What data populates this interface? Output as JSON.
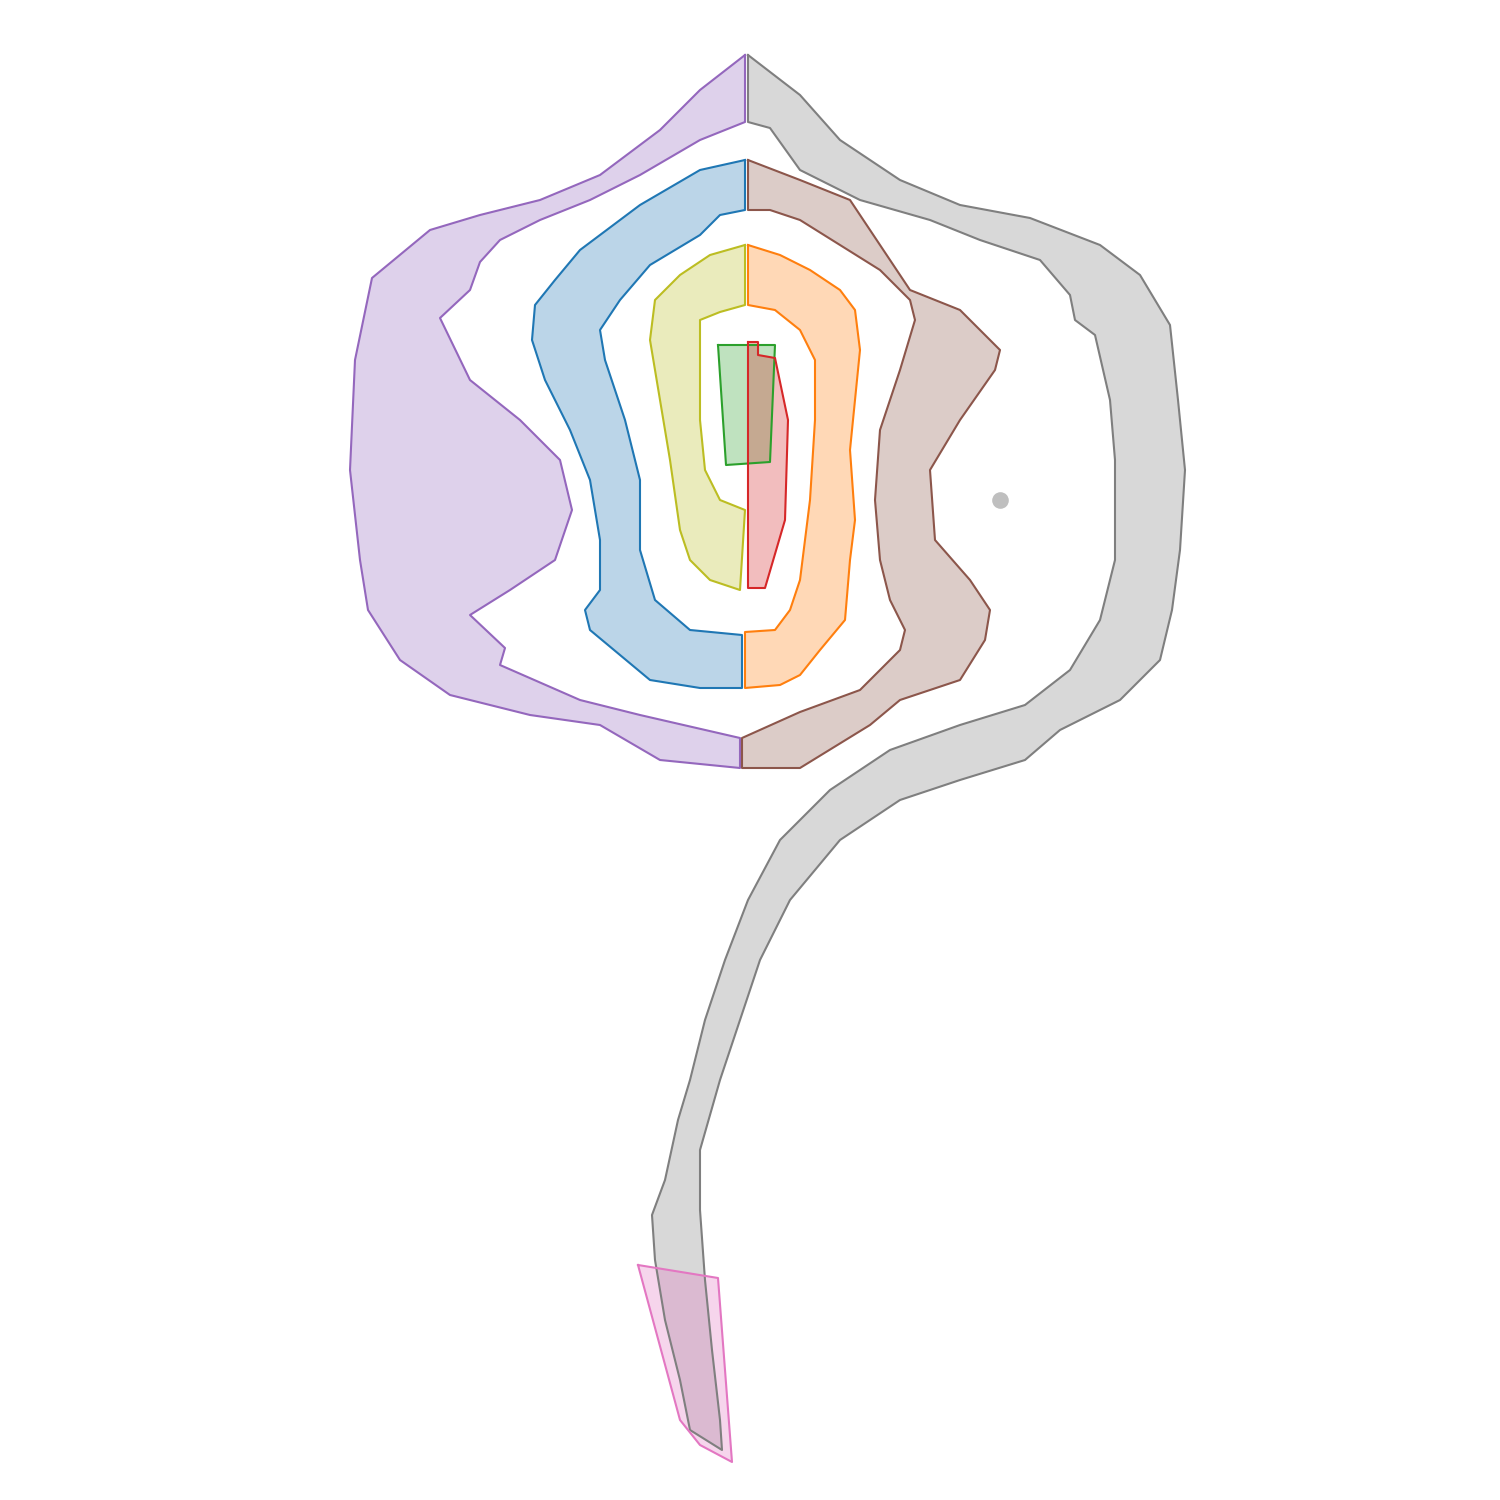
{
  "chart_data": {
    "type": "area",
    "tick_labels": false,
    "grid": false,
    "xlim": [
      0,
      1500
    ],
    "ylim": [
      1500,
      0
    ],
    "series": [
      {
        "color": "#9467bd",
        "type": "area",
        "x": [
          745,
          700,
          660,
          600,
          540,
          480,
          430,
          372,
          355,
          350,
          360,
          368,
          400,
          450,
          530,
          600,
          660,
          740,
          740,
          640,
          580,
          500,
          505,
          470,
          510,
          555,
          572,
          560,
          520,
          470,
          440,
          470,
          480,
          500,
          540,
          590,
          640,
          700,
          745
        ],
        "y": [
          55,
          90,
          130,
          175,
          200,
          215,
          230,
          278,
          360,
          470,
          560,
          610,
          660,
          695,
          715,
          725,
          760,
          768,
          738,
          715,
          700,
          665,
          648,
          615,
          590,
          560,
          510,
          460,
          420,
          380,
          318,
          290,
          262,
          240,
          220,
          200,
          175,
          140,
          122
        ]
      },
      {
        "color": "#7f7f7f",
        "type": "area",
        "x": [
          748,
          800,
          840,
          900,
          960,
          1030,
          1100,
          1140,
          1170,
          1178,
          1185,
          1180,
          1172,
          1160,
          1120,
          1060,
          1025,
          960,
          900,
          840,
          790,
          760,
          740,
          720,
          700,
          700,
          705,
          712,
          720,
          722,
          690,
          680,
          665,
          655,
          652,
          665,
          678,
          690,
          705,
          725,
          748,
          780,
          830,
          890,
          960,
          1025,
          1070,
          1100,
          1115,
          1115,
          1110,
          1095,
          1075,
          1070,
          1040,
          980,
          930,
          860,
          800,
          770,
          748
        ],
        "y": [
          55,
          95,
          140,
          180,
          205,
          218,
          245,
          275,
          325,
          400,
          470,
          550,
          610,
          660,
          700,
          730,
          760,
          780,
          800,
          840,
          900,
          960,
          1020,
          1080,
          1150,
          1210,
          1280,
          1350,
          1420,
          1450,
          1430,
          1380,
          1320,
          1260,
          1215,
          1180,
          1120,
          1080,
          1020,
          960,
          900,
          840,
          790,
          750,
          725,
          705,
          670,
          620,
          560,
          460,
          400,
          335,
          320,
          295,
          260,
          240,
          220,
          200,
          170,
          128,
          122
        ]
      },
      {
        "color": "#1f77b4",
        "type": "area",
        "x": [
          745,
          700,
          640,
          580,
          555,
          535,
          532,
          545,
          570,
          590,
          600,
          600,
          585,
          590,
          650,
          700,
          742,
          742,
          690,
          655,
          640,
          640,
          625,
          605,
          600,
          620,
          650,
          700,
          720,
          745
        ],
        "y": [
          160,
          170,
          205,
          250,
          280,
          305,
          340,
          380,
          430,
          480,
          540,
          590,
          610,
          630,
          680,
          688,
          688,
          635,
          630,
          600,
          550,
          480,
          420,
          360,
          330,
          300,
          265,
          235,
          215,
          210
        ]
      },
      {
        "color": "#8c564b",
        "type": "area",
        "x": [
          748,
          800,
          850,
          880,
          910,
          960,
          1000,
          995,
          960,
          930,
          935,
          970,
          990,
          985,
          960,
          900,
          870,
          800,
          742,
          742,
          800,
          860,
          900,
          905,
          890,
          880,
          875,
          880,
          900,
          915,
          910,
          880,
          840,
          800,
          770,
          748
        ],
        "y": [
          160,
          180,
          200,
          245,
          290,
          310,
          350,
          370,
          420,
          470,
          540,
          580,
          610,
          640,
          680,
          700,
          725,
          768,
          768,
          738,
          712,
          690,
          650,
          630,
          600,
          560,
          500,
          430,
          370,
          320,
          300,
          270,
          245,
          220,
          210,
          210
        ]
      },
      {
        "color": "#bcbd22",
        "type": "area",
        "x": [
          745,
          710,
          680,
          655,
          650,
          660,
          670,
          680,
          690,
          710,
          740,
          745,
          720,
          705,
          700,
          700,
          700,
          720,
          745
        ],
        "y": [
          245,
          255,
          275,
          300,
          340,
          400,
          460,
          530,
          560,
          580,
          590,
          510,
          500,
          470,
          420,
          360,
          320,
          312,
          305
        ]
      },
      {
        "color": "#ff7f0e",
        "type": "area",
        "x": [
          748,
          780,
          810,
          840,
          855,
          860,
          855,
          850,
          855,
          850,
          845,
          820,
          800,
          780,
          745,
          745,
          775,
          790,
          800,
          810,
          815,
          815,
          800,
          775,
          748
        ],
        "y": [
          245,
          255,
          270,
          290,
          310,
          350,
          400,
          450,
          520,
          560,
          620,
          650,
          675,
          685,
          688,
          632,
          630,
          610,
          580,
          500,
          420,
          360,
          330,
          310,
          305
        ]
      },
      {
        "color": "#2ca02c",
        "type": "area",
        "x": [
          718,
          775,
          770,
          726
        ],
        "y": [
          345,
          345,
          462,
          465
        ]
      },
      {
        "color": "#d62728",
        "type": "area",
        "x": [
          748,
          758,
          758,
          775,
          788,
          785,
          765,
          748
        ],
        "y": [
          342,
          342,
          355,
          358,
          420,
          520,
          588,
          588
        ]
      },
      {
        "color": "#e377c2",
        "type": "area",
        "x": [
          638,
          718,
          732,
          700,
          680
        ],
        "y": [
          1265,
          1278,
          1462,
          1445,
          1420
        ]
      },
      {
        "color": "#bfbfbf",
        "type": "scatter",
        "x": [
          1000
        ],
        "y": [
          500
        ]
      }
    ]
  }
}
